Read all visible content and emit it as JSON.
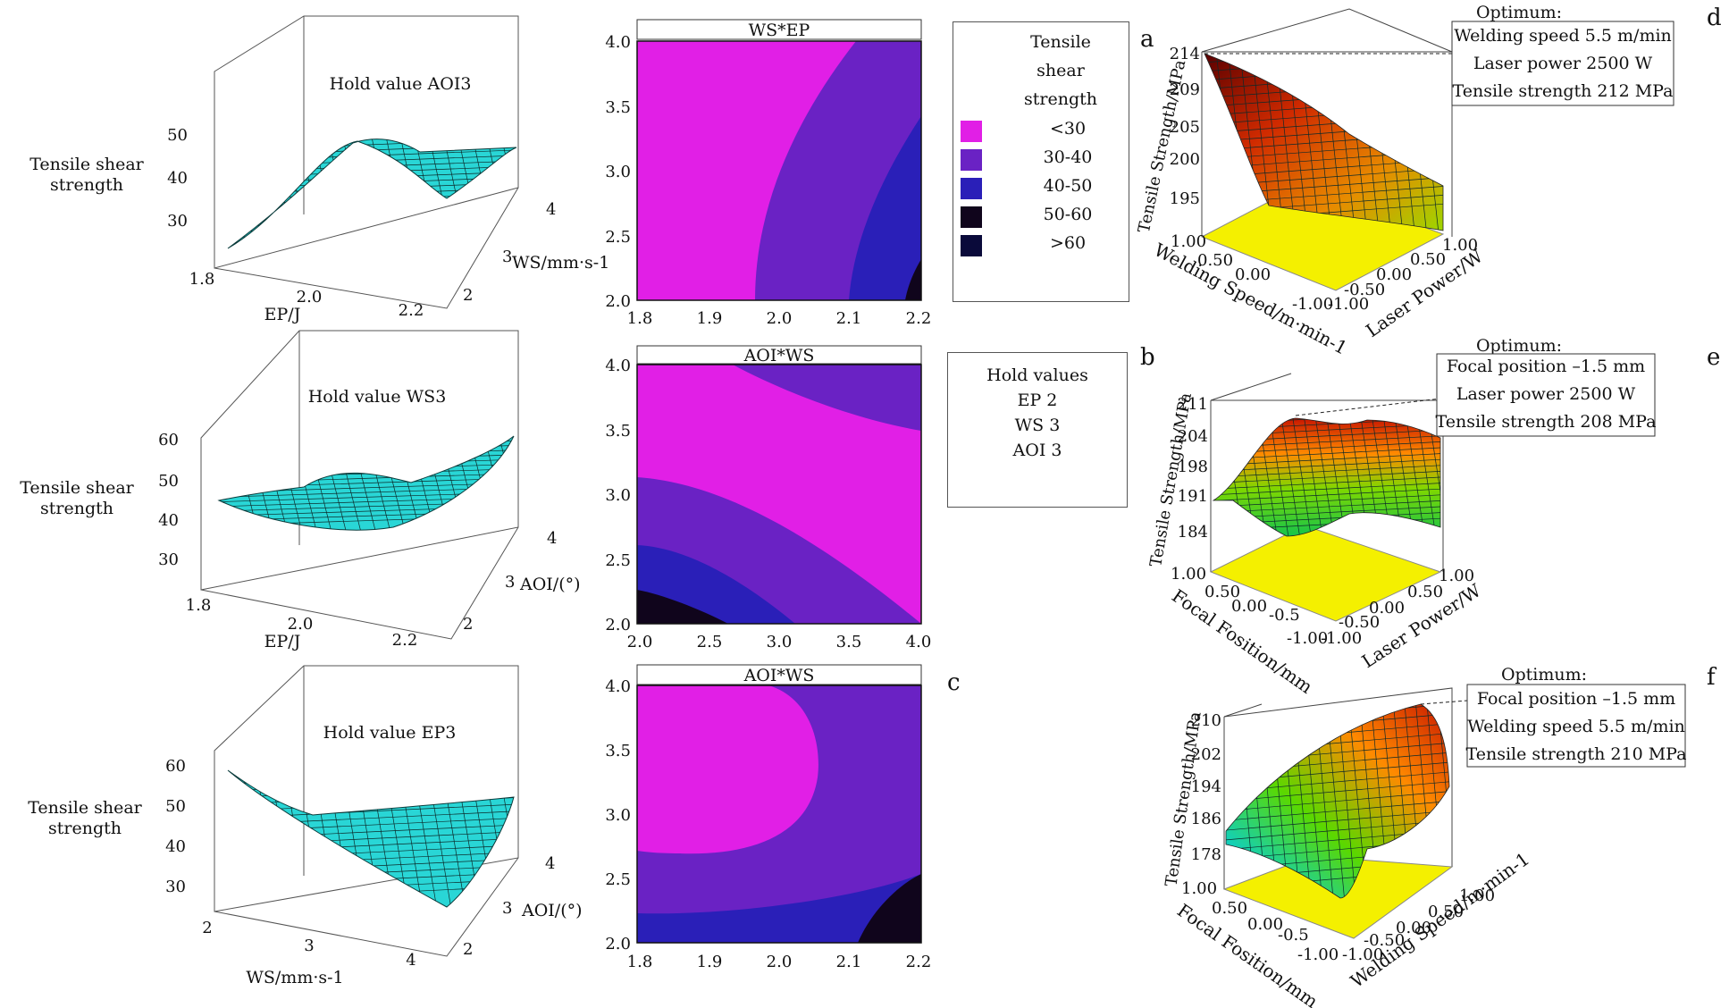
{
  "panel_letters": {
    "a": "a",
    "b": "b",
    "c": "c",
    "d": "d",
    "e": "e",
    "f": "f"
  },
  "legend": {
    "title_lines": [
      "Tensile",
      "shear",
      "strength"
    ],
    "items": [
      {
        "label": "<30",
        "color": "#e11fe6"
      },
      {
        "label": "30-40",
        "color": "#6a22c4"
      },
      {
        "label": "40-50",
        "color": "#2a1fb8"
      },
      {
        "label": "50-60",
        "color": "#10051c"
      },
      {
        "label": ">60",
        "color": "#0a0a3a"
      }
    ]
  },
  "hold_values": {
    "title": "Hold values",
    "lines": [
      "EP 2",
      "WS 3",
      "AOI 3"
    ]
  },
  "chart_data": [
    {
      "type": "surface",
      "hold_label": "Hold value AOI3",
      "z_label_lines": [
        "Tensile shear",
        "strength"
      ],
      "z_ticks": [
        "30",
        "40",
        "50"
      ],
      "x_label": "EP/J",
      "x_ticks": [
        "1.8",
        "2.0",
        "2.2"
      ],
      "y_label": "WS/mm·s-1",
      "y_ticks": [
        "2",
        "3",
        "4"
      ],
      "surface_color": "#29d6d6"
    },
    {
      "type": "surface",
      "hold_label": "Hold value WS3",
      "z_label_lines": [
        "Tensile shear",
        "strength"
      ],
      "z_ticks": [
        "30",
        "40",
        "50",
        "60"
      ],
      "x_label": "EP/J",
      "x_ticks": [
        "1.8",
        "2.0",
        "2.2"
      ],
      "y_label": "AOI/(°)",
      "y_ticks": [
        "2",
        "3",
        "4"
      ],
      "surface_color": "#29d6d6"
    },
    {
      "type": "surface",
      "hold_label": "Hold value EP3",
      "z_label_lines": [
        "Tensile shear",
        "strength"
      ],
      "z_ticks": [
        "30",
        "40",
        "50",
        "60"
      ],
      "x_label": "WS/mm·s-1",
      "x_ticks": [
        "2",
        "3",
        "4"
      ],
      "y_label": "AOI/(°)",
      "y_ticks": [
        "2",
        "3",
        "4"
      ],
      "surface_color": "#29d6d6"
    },
    {
      "type": "contour",
      "title": "WS*EP",
      "xlim": [
        1.8,
        2.2
      ],
      "ylim": [
        2.0,
        4.0
      ],
      "x_ticks": [
        "1.8",
        "1.9",
        "2.0",
        "2.1",
        "2.2"
      ],
      "y_ticks": [
        "2.0",
        "2.5",
        "3.0",
        "3.5",
        "4.0"
      ]
    },
    {
      "type": "contour",
      "title": "AOI*WS",
      "xlim": [
        2.0,
        4.0
      ],
      "ylim": [
        2.0,
        4.0
      ],
      "x_ticks": [
        "2.0",
        "2.5",
        "3.0",
        "3.5",
        "4.0"
      ],
      "y_ticks": [
        "2.0",
        "2.5",
        "3.0",
        "3.5",
        "4.0"
      ]
    },
    {
      "type": "contour",
      "title": "AOI*WS",
      "xlim": [
        1.8,
        2.2
      ],
      "ylim": [
        2.0,
        4.0
      ],
      "x_ticks": [
        "1.8",
        "1.9",
        "2.0",
        "2.1",
        "2.2"
      ],
      "y_ticks": [
        "2.0",
        "2.5",
        "3.0",
        "3.5",
        "4.0"
      ]
    },
    {
      "type": "surface",
      "z_label": "Tensile Strength/MPa",
      "z_ticks": [
        "195",
        "200",
        "205",
        "209",
        "214"
      ],
      "x_label": "Welding Speed/m·min-1",
      "x_ticks": [
        "1.00",
        "0.50",
        "0.00",
        "-1.00"
      ],
      "y_label": "Laser Power/W",
      "y_ticks": [
        "1.00",
        "0.50",
        "0.00",
        "-0.50",
        "-1.00"
      ],
      "optimum_title": "Optimum:",
      "optimum_lines": [
        "Welding speed 5.5 m/min",
        "Laser power 2500 W",
        "Tensile strength 212 MPa"
      ]
    },
    {
      "type": "surface",
      "z_label": "Tensile Strength/MPa",
      "z_ticks": [
        "184",
        "191",
        "198",
        "204",
        "211"
      ],
      "x_label": "Focal Fosition/mm",
      "x_ticks": [
        "1.00",
        "0.50",
        "0.00",
        "-0.5",
        "-1.00"
      ],
      "y_label": "Laser Power/W",
      "y_ticks": [
        "1.00",
        "0.50",
        "0.00",
        "-0.50",
        "-1.00"
      ],
      "optimum_title": "Optimum:",
      "optimum_lines": [
        "Focal position –1.5 mm",
        "Laser power 2500 W",
        "Tensile strength 208 MPa"
      ]
    },
    {
      "type": "surface",
      "z_label": "Tensile Strength/MPa",
      "z_ticks": [
        "178",
        "186",
        "194",
        "202",
        "210"
      ],
      "x_label": "Focal Fosition/mm",
      "x_ticks": [
        "1.00",
        "0.50",
        "0.00",
        "-0.5",
        "-1.00"
      ],
      "y_label": "Welding Speed/m·min-1",
      "y_ticks": [
        "1.00",
        "0.50",
        "0.00",
        "-0.50",
        "-1.00"
      ],
      "optimum_title": "Optimum:",
      "optimum_lines": [
        "Focal position –1.5 mm",
        "Welding speed 5.5 m/min",
        "Tensile strength 210 MPa"
      ]
    }
  ]
}
